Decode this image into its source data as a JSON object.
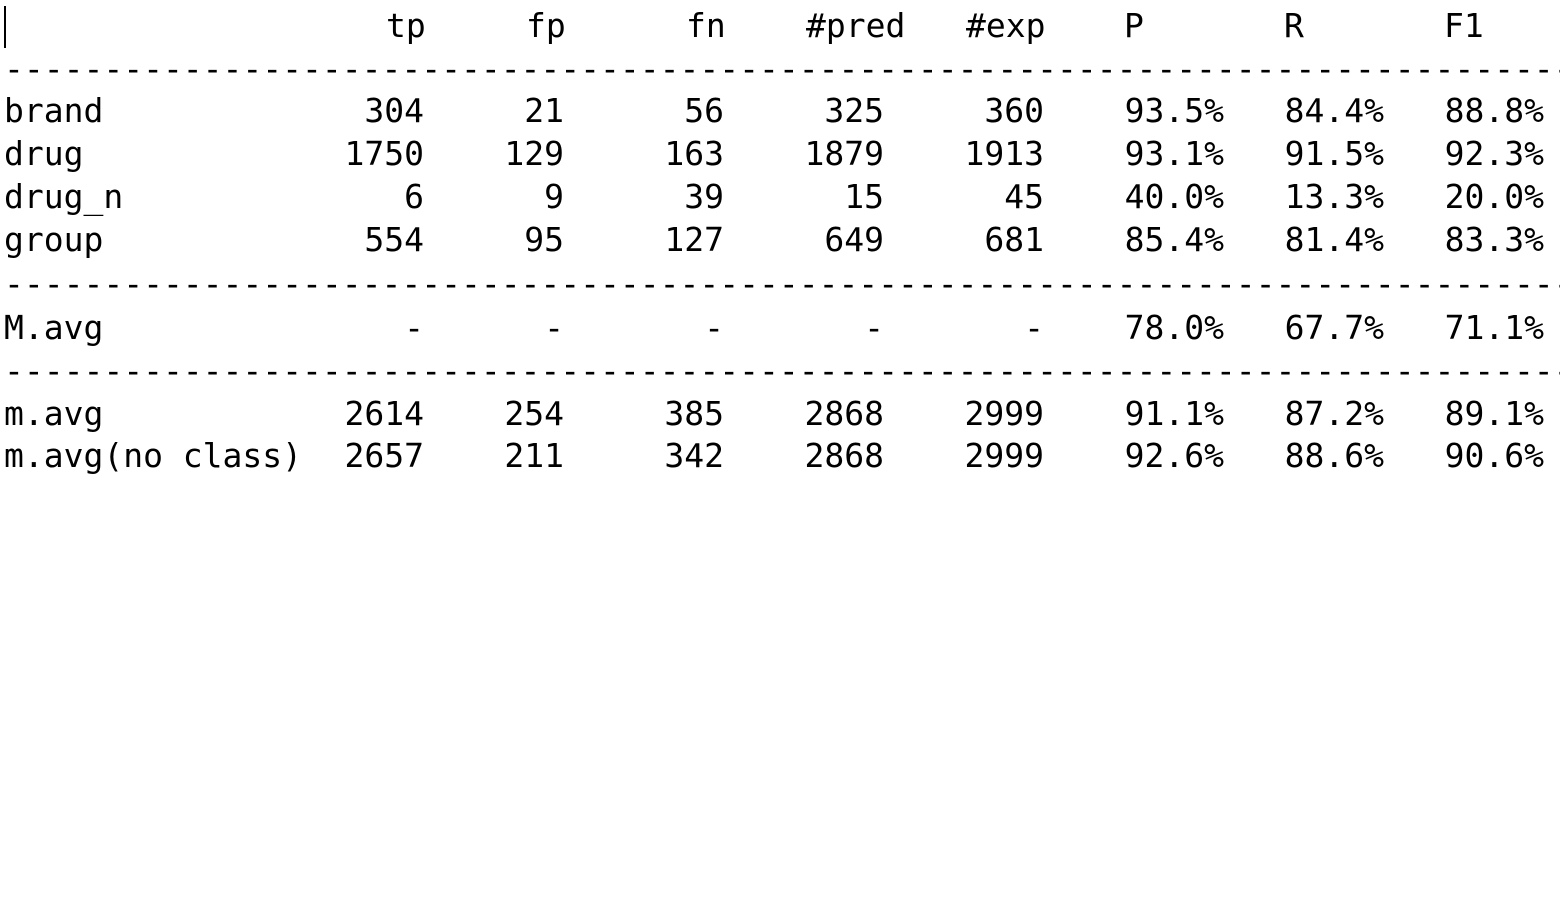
{
  "table": {
    "headers": {
      "tp": "tp",
      "fp": "fp",
      "fn": "fn",
      "pred": "#pred",
      "exp": "#exp",
      "p": "P",
      "r": "R",
      "f1": "F1"
    },
    "separator": "--------------------------------------------------------------------------------",
    "class_rows": [
      {
        "label": "brand",
        "tp": "304",
        "fp": "21",
        "fn": "56",
        "pred": "325",
        "exp": "360",
        "p": "93.5%",
        "r": "84.4%",
        "f1": "88.8%"
      },
      {
        "label": "drug",
        "tp": "1750",
        "fp": "129",
        "fn": "163",
        "pred": "1879",
        "exp": "1913",
        "p": "93.1%",
        "r": "91.5%",
        "f1": "92.3%"
      },
      {
        "label": "drug_n",
        "tp": "6",
        "fp": "9",
        "fn": "39",
        "pred": "15",
        "exp": "45",
        "p": "40.0%",
        "r": "13.3%",
        "f1": "20.0%"
      },
      {
        "label": "group",
        "tp": "554",
        "fp": "95",
        "fn": "127",
        "pred": "649",
        "exp": "681",
        "p": "85.4%",
        "r": "81.4%",
        "f1": "83.3%"
      }
    ],
    "macro_row": {
      "label": "M.avg",
      "tp": "-",
      "fp": "-",
      "fn": "-",
      "pred": "-",
      "exp": "-",
      "p": "78.0%",
      "r": "67.7%",
      "f1": "71.1%"
    },
    "micro_rows": [
      {
        "label": "m.avg",
        "tp": "2614",
        "fp": "254",
        "fn": "385",
        "pred": "2868",
        "exp": "2999",
        "p": "91.1%",
        "r": "87.2%",
        "f1": "89.1%"
      },
      {
        "label": "m.avg(no class)",
        "tp": "2657",
        "fp": "211",
        "fn": "342",
        "pred": "2868",
        "exp": "2999",
        "p": "92.6%",
        "r": "88.6%",
        "f1": "90.6%"
      }
    ]
  }
}
